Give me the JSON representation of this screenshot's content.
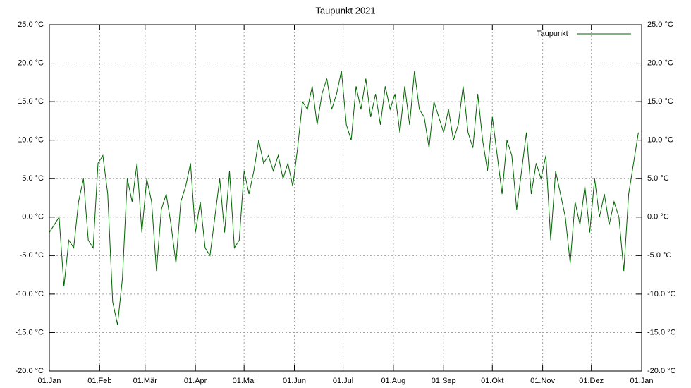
{
  "chart_data": {
    "type": "line",
    "title": "Taupunkt 2021",
    "x": [
      0,
      3,
      6,
      9,
      12,
      15,
      18,
      21,
      24,
      27,
      30,
      33,
      36,
      39,
      42,
      45,
      48,
      51,
      54,
      57,
      60,
      63,
      66,
      69,
      72,
      75,
      78,
      81,
      84,
      87,
      90,
      93,
      96,
      99,
      102,
      105,
      108,
      111,
      114,
      117,
      120,
      123,
      126,
      129,
      132,
      135,
      138,
      141,
      144,
      147,
      150,
      153,
      156,
      159,
      162,
      165,
      168,
      171,
      174,
      177,
      180,
      183,
      186,
      189,
      192,
      195,
      198,
      201,
      204,
      207,
      210,
      213,
      216,
      219,
      222,
      225,
      228,
      231,
      234,
      237,
      240,
      243,
      246,
      249,
      252,
      255,
      258,
      261,
      264,
      267,
      270,
      273,
      276,
      279,
      282,
      285,
      288,
      291,
      294,
      297,
      300,
      303,
      306,
      309,
      312,
      315,
      318,
      321,
      324,
      327,
      330,
      333,
      336,
      339,
      342,
      345,
      348,
      351,
      354,
      357,
      360,
      363
    ],
    "series": [
      {
        "name": "Taupunkt",
        "color": "#006400",
        "values": [
          -2,
          -1,
          0,
          -9,
          -3,
          -4,
          2,
          5,
          -3,
          -4,
          7,
          8,
          3,
          -11,
          -14,
          -8,
          5,
          2,
          7,
          -2,
          5,
          2,
          -7,
          1,
          3,
          -1,
          -6,
          2,
          4,
          7,
          -2,
          2,
          -4,
          -5,
          0,
          5,
          -2,
          6,
          -4,
          -3,
          6,
          3,
          6,
          10,
          7,
          8,
          6,
          8,
          5,
          7,
          4,
          9,
          15,
          14,
          17,
          12,
          16,
          18,
          14,
          16,
          19,
          12,
          10,
          17,
          14,
          18,
          13,
          16,
          12,
          17,
          14,
          16,
          11,
          17,
          12,
          19,
          14,
          13,
          9,
          15,
          13,
          11,
          14,
          10,
          12,
          17,
          11,
          9,
          16,
          10,
          6,
          13,
          8,
          3,
          10,
          8,
          1,
          6,
          11,
          3,
          7,
          5,
          8,
          -3,
          6,
          3,
          0,
          -6,
          2,
          -1,
          4,
          -2,
          5,
          0,
          3,
          -1,
          2,
          0,
          -7,
          3,
          7,
          11
        ]
      }
    ],
    "xlim": [
      0,
      365
    ],
    "xticks": [
      {
        "value": 0,
        "label": "01.Jan"
      },
      {
        "value": 31,
        "label": "01.Feb"
      },
      {
        "value": 59,
        "label": "01.Mär"
      },
      {
        "value": 90,
        "label": "01.Apr"
      },
      {
        "value": 120,
        "label": "01.Mai"
      },
      {
        "value": 151,
        "label": "01.Jun"
      },
      {
        "value": 181,
        "label": "01.Jul"
      },
      {
        "value": 212,
        "label": "01.Aug"
      },
      {
        "value": 243,
        "label": "01.Sep"
      },
      {
        "value": 273,
        "label": "01.Okt"
      },
      {
        "value": 304,
        "label": "01.Nov"
      },
      {
        "value": 334,
        "label": "01.Dez"
      },
      {
        "value": 365,
        "label": "01.Jan"
      }
    ],
    "ylim": [
      -20,
      25
    ],
    "yticks": [
      {
        "value": -20,
        "label": "-20.0 °C"
      },
      {
        "value": -15,
        "label": "-15.0 °C"
      },
      {
        "value": -10,
        "label": "-10.0 °C"
      },
      {
        "value": -5,
        "label": "-5.0 °C"
      },
      {
        "value": 0,
        "label": "0.0 °C"
      },
      {
        "value": 5,
        "label": "5.0 °C"
      },
      {
        "value": 10,
        "label": "10.0 °C"
      },
      {
        "value": 15,
        "label": "15.0 °C"
      },
      {
        "value": 20,
        "label": "20.0 °C"
      },
      {
        "value": 25,
        "label": "25.0 °C"
      }
    ],
    "grid": true,
    "legend": "top-right"
  }
}
